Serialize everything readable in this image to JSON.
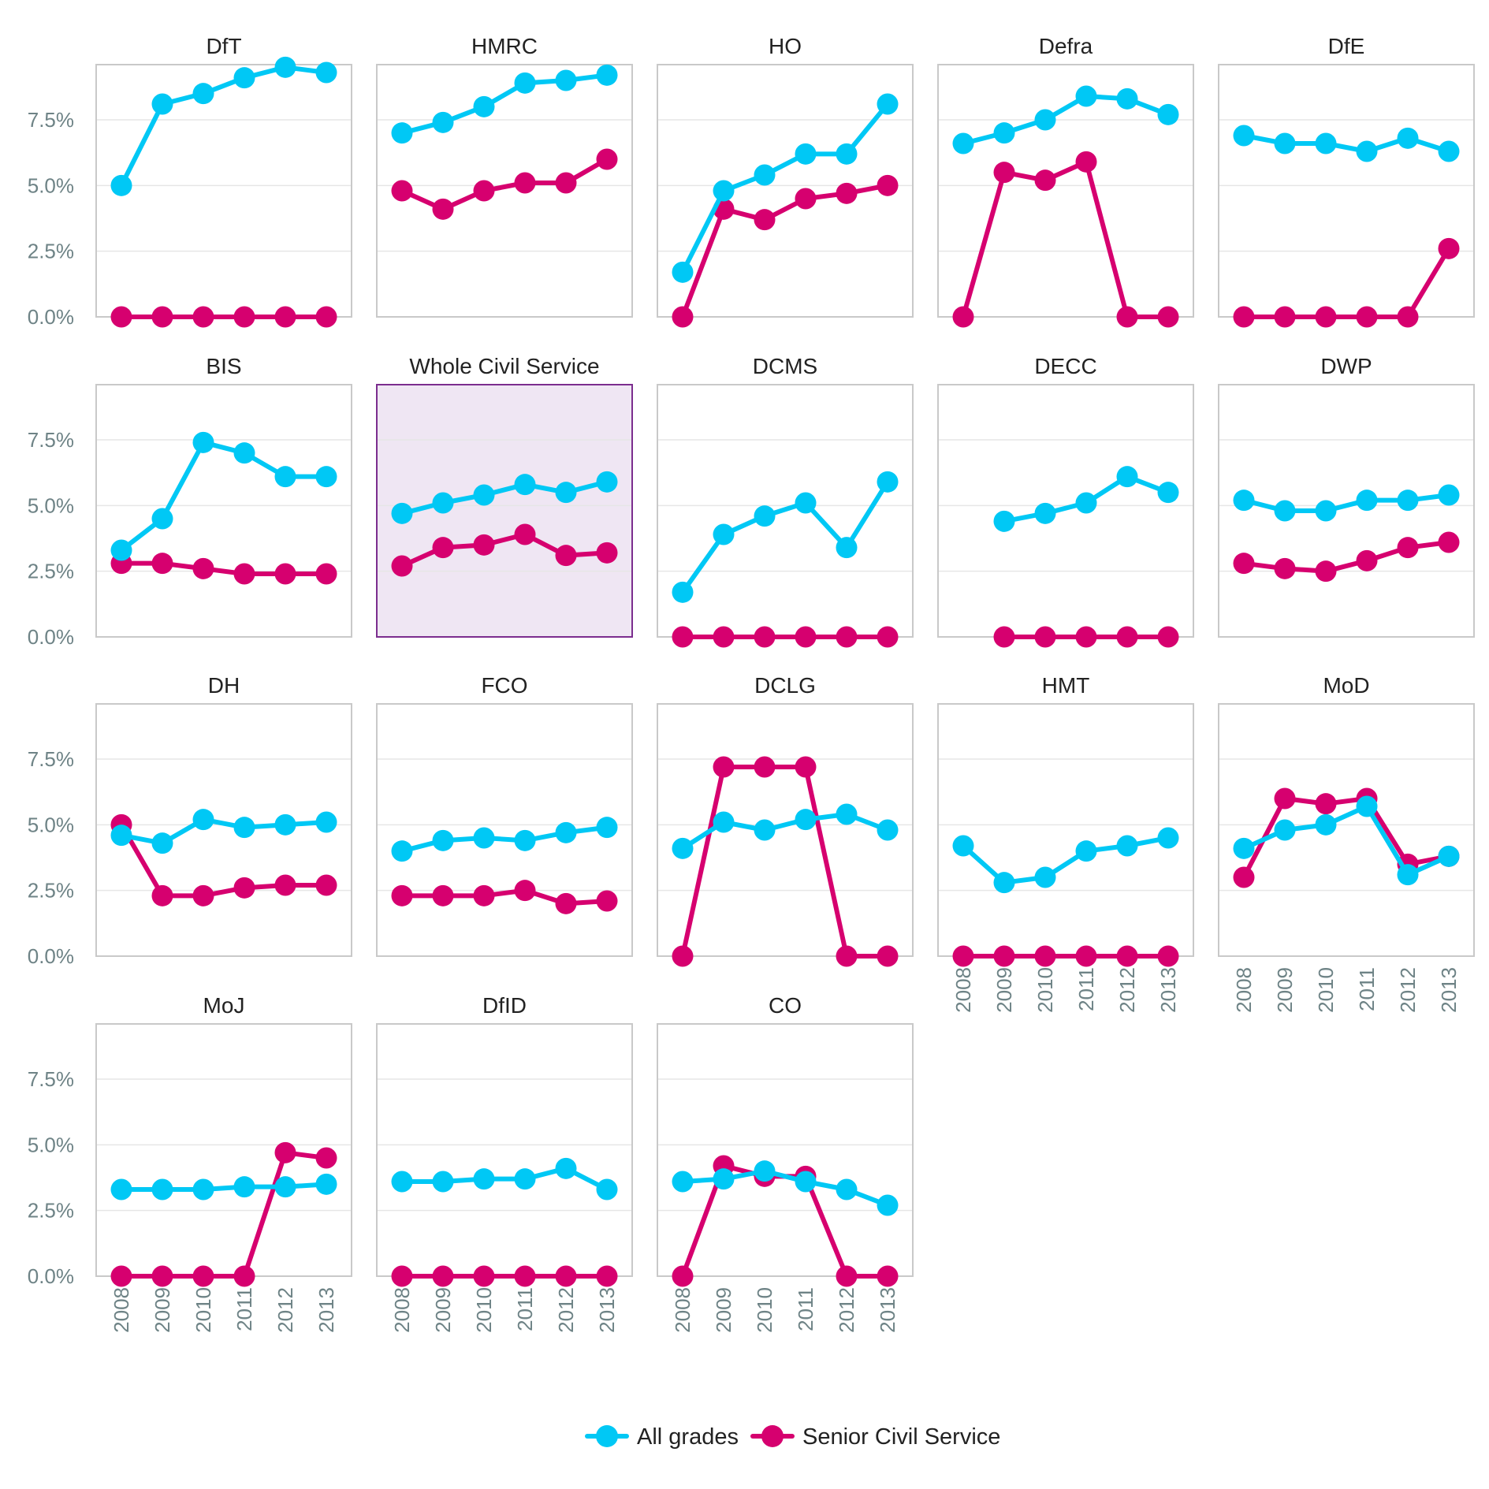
{
  "chart_data": {
    "type": "line",
    "layout": "small-multiples",
    "x": [
      "2008",
      "2009",
      "2010",
      "2011",
      "2012",
      "2013"
    ],
    "ylim": [
      0,
      9.6
    ],
    "yticks": [
      0,
      2.5,
      5,
      7.5
    ],
    "ytick_labels": [
      "0.0%",
      "2.5%",
      "5.0%",
      "7.5%"
    ],
    "grid": true,
    "legend_position": "bottom-center",
    "highlighted_panel": "Whole Civil Service",
    "highlight_color": "#efe6f3",
    "highlight_border": "#7b2d8e",
    "series_names": [
      "All grades",
      "Senior Civil Service"
    ],
    "series_colors": [
      "#00c8f5",
      "#d6006f"
    ],
    "panels": [
      {
        "title": "DfT",
        "all_grades": [
          5.0,
          8.1,
          8.5,
          9.1,
          9.5,
          9.3
        ],
        "senior": [
          0,
          0,
          0,
          0,
          0,
          0
        ]
      },
      {
        "title": "HMRC",
        "all_grades": [
          7.0,
          7.4,
          8.0,
          8.9,
          9.0,
          9.2
        ],
        "senior": [
          4.8,
          4.1,
          4.8,
          5.1,
          5.1,
          6.0
        ]
      },
      {
        "title": "HO",
        "all_grades": [
          1.7,
          4.8,
          5.4,
          6.2,
          6.2,
          8.1
        ],
        "senior": [
          0,
          4.1,
          3.7,
          4.5,
          4.7,
          5.0
        ]
      },
      {
        "title": "Defra",
        "all_grades": [
          6.6,
          7.0,
          7.5,
          8.4,
          8.3,
          7.7
        ],
        "senior": [
          0,
          5.5,
          5.2,
          5.9,
          0,
          0
        ]
      },
      {
        "title": "DfE",
        "all_grades": [
          6.9,
          6.6,
          6.6,
          6.3,
          6.8,
          6.3
        ],
        "senior": [
          0,
          0,
          0,
          0,
          0,
          2.6
        ]
      },
      {
        "title": "BIS",
        "all_grades": [
          3.3,
          4.5,
          7.4,
          7.0,
          6.1,
          6.1
        ],
        "senior": [
          2.8,
          2.8,
          2.6,
          2.4,
          2.4,
          2.4
        ]
      },
      {
        "title": "Whole Civil Service",
        "all_grades": [
          4.7,
          5.1,
          5.4,
          5.8,
          5.5,
          5.9
        ],
        "senior": [
          2.7,
          3.4,
          3.5,
          3.9,
          3.1,
          3.2
        ]
      },
      {
        "title": "DCMS",
        "all_grades": [
          1.7,
          3.9,
          4.6,
          5.1,
          3.4,
          5.9
        ],
        "senior": [
          0,
          0,
          0,
          0,
          0,
          0
        ]
      },
      {
        "title": "DECC",
        "all_grades": [
          null,
          4.4,
          4.7,
          5.1,
          6.1,
          5.5
        ],
        "senior": [
          null,
          0,
          0,
          0,
          0,
          0
        ]
      },
      {
        "title": "DWP",
        "all_grades": [
          5.2,
          4.8,
          4.8,
          5.2,
          5.2,
          5.4
        ],
        "senior": [
          2.8,
          2.6,
          2.5,
          2.9,
          3.4,
          3.6
        ]
      },
      {
        "title": "DH",
        "all_grades": [
          4.6,
          4.3,
          5.2,
          4.9,
          5.0,
          5.1
        ],
        "senior": [
          5.0,
          2.3,
          2.3,
          2.6,
          2.7,
          2.7
        ]
      },
      {
        "title": "FCO",
        "all_grades": [
          4.0,
          4.4,
          4.5,
          4.4,
          4.7,
          4.9
        ],
        "senior": [
          2.3,
          2.3,
          2.3,
          2.5,
          2.0,
          2.1
        ]
      },
      {
        "title": "DCLG",
        "all_grades": [
          4.1,
          5.1,
          4.8,
          5.2,
          5.4,
          4.8
        ],
        "senior": [
          0,
          7.2,
          7.2,
          7.2,
          0,
          0
        ]
      },
      {
        "title": "HMT",
        "all_grades": [
          4.2,
          2.8,
          3.0,
          4.0,
          4.2,
          4.5
        ],
        "senior": [
          0,
          0,
          0,
          0,
          0,
          0
        ]
      },
      {
        "title": "MoD",
        "all_grades": [
          4.1,
          4.8,
          5.0,
          5.7,
          3.1,
          3.8
        ],
        "senior": [
          3.0,
          6.0,
          5.8,
          6.0,
          3.5,
          3.8
        ]
      },
      {
        "title": "MoJ",
        "all_grades": [
          3.3,
          3.3,
          3.3,
          3.4,
          3.4,
          3.5
        ],
        "senior": [
          0,
          0,
          0,
          0,
          4.7,
          4.5
        ]
      },
      {
        "title": "DfID",
        "all_grades": [
          3.6,
          3.6,
          3.7,
          3.7,
          4.1,
          3.3
        ],
        "senior": [
          0,
          0,
          0,
          0,
          0,
          0
        ]
      },
      {
        "title": "CO",
        "all_grades": [
          3.6,
          3.7,
          4.0,
          3.6,
          3.3,
          2.7
        ],
        "senior": [
          0,
          4.2,
          3.8,
          3.8,
          0,
          0
        ]
      }
    ]
  }
}
